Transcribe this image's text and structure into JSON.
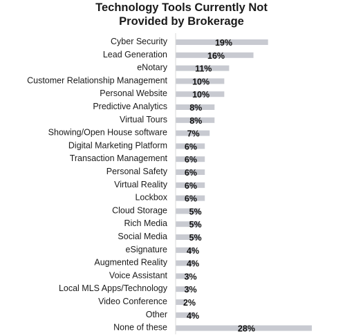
{
  "title_line1": "Technology Tools Currently Not",
  "title_line2": "Provided by Brokerage",
  "chart_data": {
    "type": "bar",
    "orientation": "horizontal",
    "title": "Technology Tools Currently Not Provided by Brokerage",
    "categories": [
      "Cyber Security",
      "Lead Generation",
      "eNotary",
      "Customer Relationship Management",
      "Personal Website",
      "Predictive Analytics",
      "Virtual Tours",
      "Showing/Open House software",
      "Digital Marketing Platform",
      "Transaction Management",
      "Personal Safety",
      "Virtual Reality",
      "Lockbox",
      "Cloud Storage",
      "Rich Media",
      "Social Media",
      "eSignature",
      "Augmented Reality",
      "Voice Assistant",
      "Local MLS Apps/Technology",
      "Video Conference",
      "Other",
      "None of these"
    ],
    "values": [
      19,
      16,
      11,
      10,
      10,
      8,
      8,
      7,
      6,
      6,
      6,
      6,
      6,
      5,
      5,
      5,
      4,
      4,
      3,
      3,
      2,
      4,
      28
    ],
    "value_labels": [
      "19%",
      "16%",
      "11%",
      "10%",
      "10%",
      "8%",
      "8%",
      "7%",
      "6%",
      "6%",
      "6%",
      "6%",
      "6%",
      "5%",
      "5%",
      "5%",
      "4%",
      "4%",
      "3%",
      "3%",
      "2%",
      "4%",
      "28%"
    ],
    "xlim": [
      0,
      30
    ],
    "grid": false,
    "legend": "none",
    "bar_color": "#c8cad1",
    "axis_line_color": "#d9d9d9"
  }
}
